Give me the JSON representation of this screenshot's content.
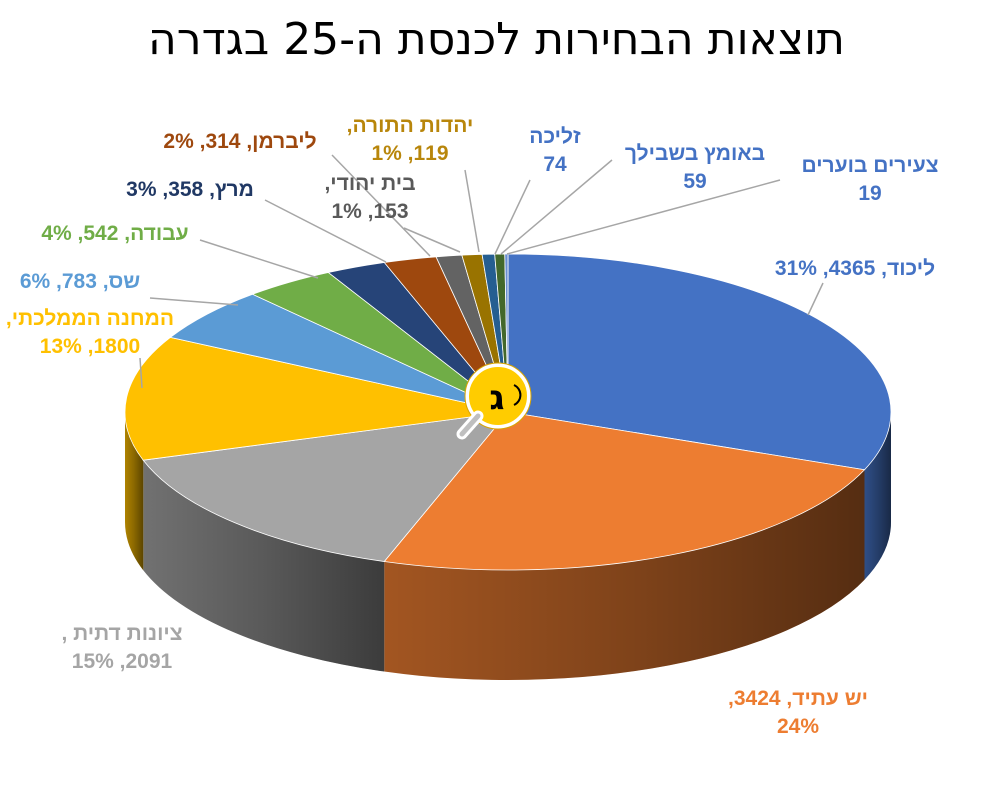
{
  "title": "תוצאות הבחירות לכנסת ה-25 בגדרה",
  "badge_letter": "ג",
  "chart_data": {
    "type": "pie",
    "title": "תוצאות הבחירות לכנסת ה-25 בגדרה",
    "three_d": true,
    "legend": "none",
    "slices": [
      {
        "name": "ליכוד",
        "value": 4365,
        "percent": 31,
        "color": "#4472c4",
        "label_lines": [
          "ליכוד, 4365, 31%"
        ]
      },
      {
        "name": "יש עתיד",
        "value": 3424,
        "percent": 24,
        "color": "#ed7d31",
        "label_lines": [
          "יש עתיד, 3424,",
          "24%"
        ]
      },
      {
        "name": "ציונות דתית",
        "value": 2091,
        "percent": 15,
        "color": "#a5a5a5",
        "label_lines": [
          "ציונות דתית ,",
          "2091, 15%"
        ]
      },
      {
        "name": "המחנה הממלכתי",
        "value": 1800,
        "percent": 13,
        "color": "#ffc000",
        "label_lines": [
          "המחנה הממלכתי,",
          "1800, 13%"
        ]
      },
      {
        "name": "שס",
        "value": 783,
        "percent": 6,
        "color": "#5b9bd5",
        "label_lines": [
          "שס, 783, 6%"
        ]
      },
      {
        "name": "עבודה",
        "value": 542,
        "percent": 4,
        "color": "#70ad47",
        "label_lines": [
          "עבודה, 542, 4%"
        ]
      },
      {
        "name": "מרץ",
        "value": 358,
        "percent": 3,
        "color": "#264478",
        "label_lines": [
          "מרץ, 358, 3%"
        ]
      },
      {
        "name": "ליברמן",
        "value": 314,
        "percent": 2,
        "color": "#9e480e",
        "label_lines": [
          "ליברמן, 314, 2%"
        ]
      },
      {
        "name": "בית יהודי",
        "value": 153,
        "percent": 1,
        "color": "#636363",
        "label_lines": [
          "בית יהודי,",
          "153, 1%"
        ]
      },
      {
        "name": "יהדות התורה",
        "value": 119,
        "percent": 1,
        "color": "#997300",
        "label_lines": [
          "יהדות התורה,",
          "119, 1%"
        ]
      },
      {
        "name": "זליכה",
        "value": 74,
        "percent": null,
        "color": "#255e91",
        "label_lines": [
          "זליכה",
          "74"
        ]
      },
      {
        "name": "באומץ בשבילך",
        "value": 59,
        "percent": null,
        "color": "#43682b",
        "label_lines": [
          "באומץ בשבילך",
          "59"
        ]
      },
      {
        "name": "צעירים בוערים",
        "value": 19,
        "percent": null,
        "color": "#698ed0",
        "label_lines": [
          "צעירים בוערים",
          "19"
        ]
      }
    ]
  }
}
